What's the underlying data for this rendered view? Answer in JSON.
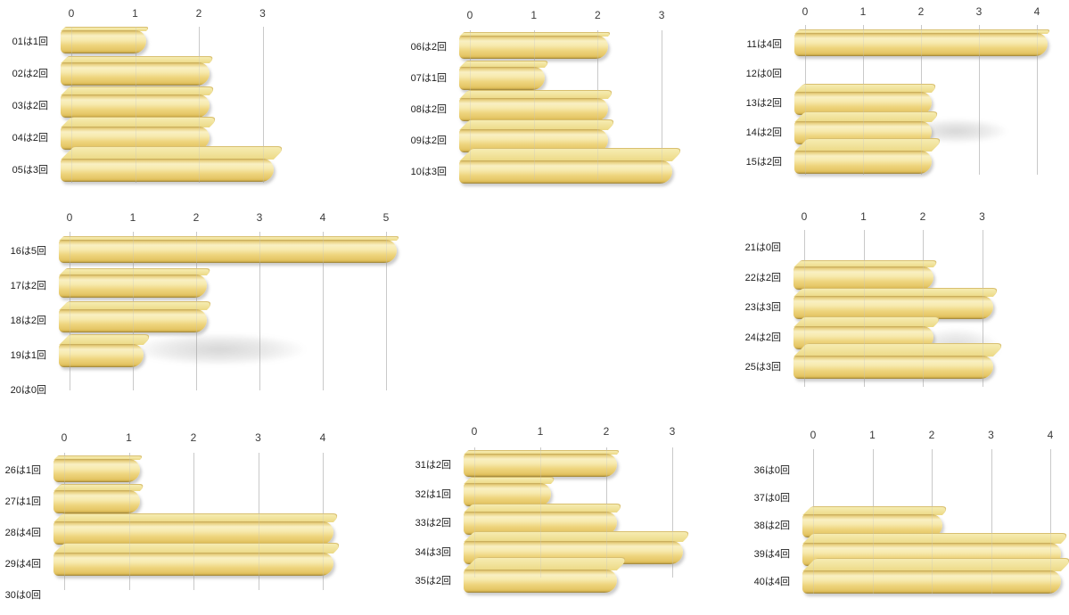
{
  "page": {
    "background": "#ffffff"
  },
  "colors": {
    "bar_main": "#e8cd70",
    "bar_highlight": "#f9f0c3",
    "bar_dark_edge": "#96803a",
    "bar_top_face": "#f1e29a",
    "gridline": "#c3c3c3",
    "label_text": "#1c1c1c",
    "axis_text": "#3a3a3a"
  },
  "chart_data": [
    {
      "type": "bar",
      "orientation": "horizontal",
      "categories": [
        "01は1回",
        "02は2回",
        "03は2回",
        "04は2回",
        "05は3回"
      ],
      "values": [
        1,
        2,
        2,
        2,
        3
      ],
      "ticks": [
        "0",
        "1",
        "2",
        "3"
      ],
      "xlim": [
        0,
        3
      ],
      "grid": true
    },
    {
      "type": "bar",
      "orientation": "horizontal",
      "categories": [
        "06は2回",
        "07は1回",
        "08は2回",
        "09は2回",
        "10は3回"
      ],
      "values": [
        2,
        1,
        2,
        2,
        3
      ],
      "ticks": [
        "0",
        "1",
        "2",
        "3"
      ],
      "xlim": [
        0,
        3
      ],
      "grid": true
    },
    {
      "type": "bar",
      "orientation": "horizontal",
      "categories": [
        "11は4回",
        "12は0回",
        "13は2回",
        "14は2回",
        "15は2回"
      ],
      "values": [
        4,
        0,
        2,
        2,
        2
      ],
      "ticks": [
        "0",
        "1",
        "2",
        "3",
        "4"
      ],
      "xlim": [
        0,
        4
      ],
      "grid": true
    },
    {
      "type": "bar",
      "orientation": "horizontal",
      "categories": [
        "16は5回",
        "17は2回",
        "18は2回",
        "19は1回",
        "20は0回"
      ],
      "values": [
        5,
        2,
        2,
        1,
        0
      ],
      "ticks": [
        "0",
        "1",
        "2",
        "3",
        "4",
        "5"
      ],
      "xlim": [
        0,
        5
      ],
      "grid": true
    },
    {
      "type": "bar",
      "orientation": "horizontal",
      "categories": [
        "21は0回",
        "22は2回",
        "23は3回",
        "24は2回",
        "25は3回"
      ],
      "values": [
        0,
        2,
        3,
        2,
        3
      ],
      "ticks": [
        "0",
        "1",
        "2",
        "3"
      ],
      "xlim": [
        0,
        3
      ],
      "grid": true
    },
    {
      "type": "bar",
      "orientation": "horizontal",
      "categories": [
        "26は1回",
        "27は1回",
        "28は4回",
        "29は4回",
        "30は0回"
      ],
      "values": [
        1,
        1,
        4,
        4,
        0
      ],
      "ticks": [
        "0",
        "1",
        "2",
        "3",
        "4"
      ],
      "xlim": [
        0,
        4
      ],
      "grid": true
    },
    {
      "type": "bar",
      "orientation": "horizontal",
      "categories": [
        "31は2回",
        "32は1回",
        "33は2回",
        "34は3回",
        "35は2回"
      ],
      "values": [
        2,
        1,
        2,
        3,
        2
      ],
      "ticks": [
        "0",
        "1",
        "2",
        "3"
      ],
      "xlim": [
        0,
        3
      ],
      "grid": true
    },
    {
      "type": "bar",
      "orientation": "horizontal",
      "categories": [
        "36は0回",
        "37は0回",
        "38は2回",
        "39は4回",
        "40は4回"
      ],
      "values": [
        0,
        0,
        2,
        4,
        4
      ],
      "ticks": [
        "0",
        "1",
        "2",
        "3",
        "4"
      ],
      "xlim": [
        0,
        4
      ],
      "grid": true
    }
  ]
}
